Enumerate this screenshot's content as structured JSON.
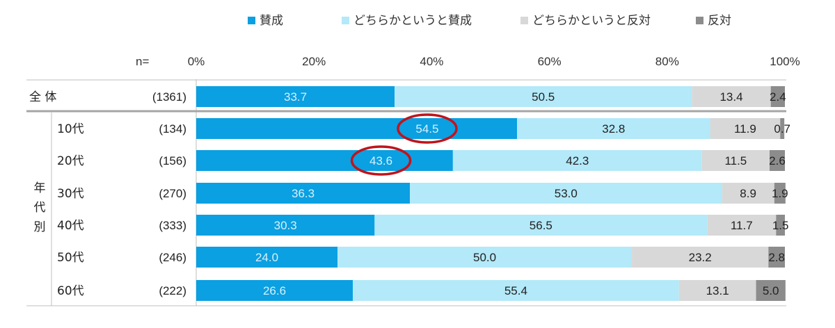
{
  "chart_data": {
    "type": "bar",
    "stacked": true,
    "orientation": "horizontal",
    "n_header": "n=",
    "x_ticks": [
      "0%",
      "20%",
      "40%",
      "60%",
      "80%",
      "100%"
    ],
    "xlim": [
      0,
      100
    ],
    "group_label": "年代別",
    "categories": [
      "全 体",
      "10代",
      "20代",
      "30代",
      "40代",
      "50代",
      "60代"
    ],
    "n_values": [
      "(1361)",
      "(134)",
      "(156)",
      "(270)",
      "(333)",
      "(246)",
      "(222)"
    ],
    "series": [
      {
        "name": "賛成",
        "color": "#0aa0e2",
        "label_color": "#d7f0fb",
        "values": [
          33.7,
          54.5,
          43.6,
          36.3,
          30.3,
          24.0,
          26.6
        ]
      },
      {
        "name": "どちらかというと賛成",
        "color": "#b3e9f9",
        "label_color": "#222222",
        "values": [
          50.5,
          32.8,
          42.3,
          53.0,
          56.5,
          50.0,
          55.4
        ]
      },
      {
        "name": "どちらかというと反対",
        "color": "#d8d8d8",
        "label_color": "#222222",
        "values": [
          13.4,
          11.9,
          11.5,
          8.9,
          11.7,
          23.2,
          13.1
        ]
      },
      {
        "name": "反対",
        "color": "#8c8c8c",
        "label_color": "#222222",
        "values": [
          2.4,
          0.7,
          2.6,
          1.9,
          1.5,
          2.8,
          5.0
        ]
      }
    ],
    "value_labels": [
      [
        "33.7",
        "50.5",
        "13.4",
        "2.4"
      ],
      [
        "54.5",
        "32.8",
        "11.9",
        "0.7"
      ],
      [
        "43.6",
        "42.3",
        "11.5",
        "2.6"
      ],
      [
        "36.3",
        "53.0",
        "8.9",
        "1.9"
      ],
      [
        "30.3",
        "56.5",
        "11.7",
        "1.5"
      ],
      [
        "24.0",
        "50.0",
        "23.2",
        "2.8"
      ],
      [
        "26.6",
        "55.4",
        "13.1",
        "5.0"
      ]
    ],
    "highlighted": [
      {
        "row": 1,
        "series": 0
      },
      {
        "row": 2,
        "series": 0
      }
    ],
    "highlight_color": "#c0141c",
    "legend_position": "top"
  }
}
